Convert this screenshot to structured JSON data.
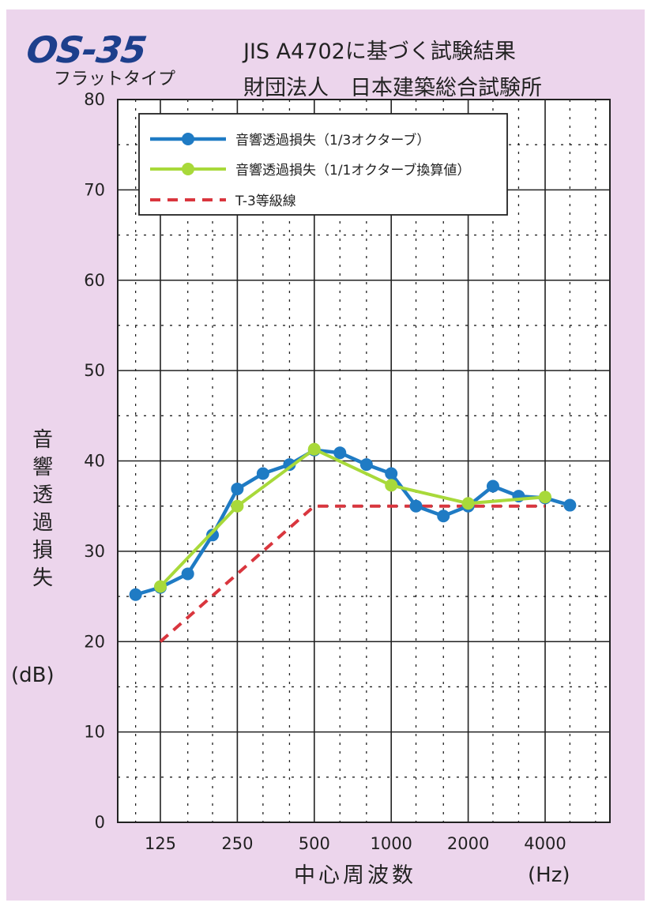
{
  "header": {
    "logo": "OS-35",
    "product_type": "フラットタイプ",
    "title_line1": "JIS A4702に基づく試験結果",
    "title_line2": "財団法人　日本建築総合試験所"
  },
  "colors": {
    "background": "#ecd5ec",
    "series_third_octave": "#1f7bc4",
    "series_octave": "#a8d93a",
    "grade_line": "#d9363e"
  },
  "chart_data": {
    "type": "line",
    "ylabel": "音響透過損失",
    "yunit": "(dB)",
    "xlabel": "中心周波数",
    "xunit": "(Hz)",
    "ylim": [
      0,
      80
    ],
    "yticks": [
      0,
      10,
      20,
      30,
      40,
      50,
      60,
      70,
      80
    ],
    "xtick_labels": [
      "125",
      "250",
      "500",
      "1000",
      "2000",
      "4000"
    ],
    "grid": true,
    "legend_position": "top-left",
    "series": [
      {
        "name": "音響透過損失（1/3オクターブ）",
        "style": "line-dot",
        "x": [
          100,
          125,
          160,
          200,
          250,
          315,
          400,
          500,
          630,
          800,
          1000,
          1250,
          1600,
          2000,
          2500,
          3150,
          4000,
          5000
        ],
        "values": [
          25.2,
          26.0,
          27.5,
          31.8,
          36.9,
          38.6,
          39.6,
          41.2,
          40.9,
          39.6,
          38.6,
          35.0,
          33.9,
          35.0,
          37.2,
          36.1,
          35.9,
          35.1
        ]
      },
      {
        "name": "音響透過損失（1/1オクターブ換算値）",
        "style": "line-dot",
        "x": [
          125,
          250,
          500,
          1000,
          2000,
          4000
        ],
        "values": [
          26.1,
          35.0,
          41.3,
          37.3,
          35.3,
          36.0
        ]
      },
      {
        "name": "T-3等級線",
        "style": "dashed",
        "x": [
          125,
          500,
          4000
        ],
        "values": [
          20,
          35,
          35
        ]
      }
    ]
  }
}
